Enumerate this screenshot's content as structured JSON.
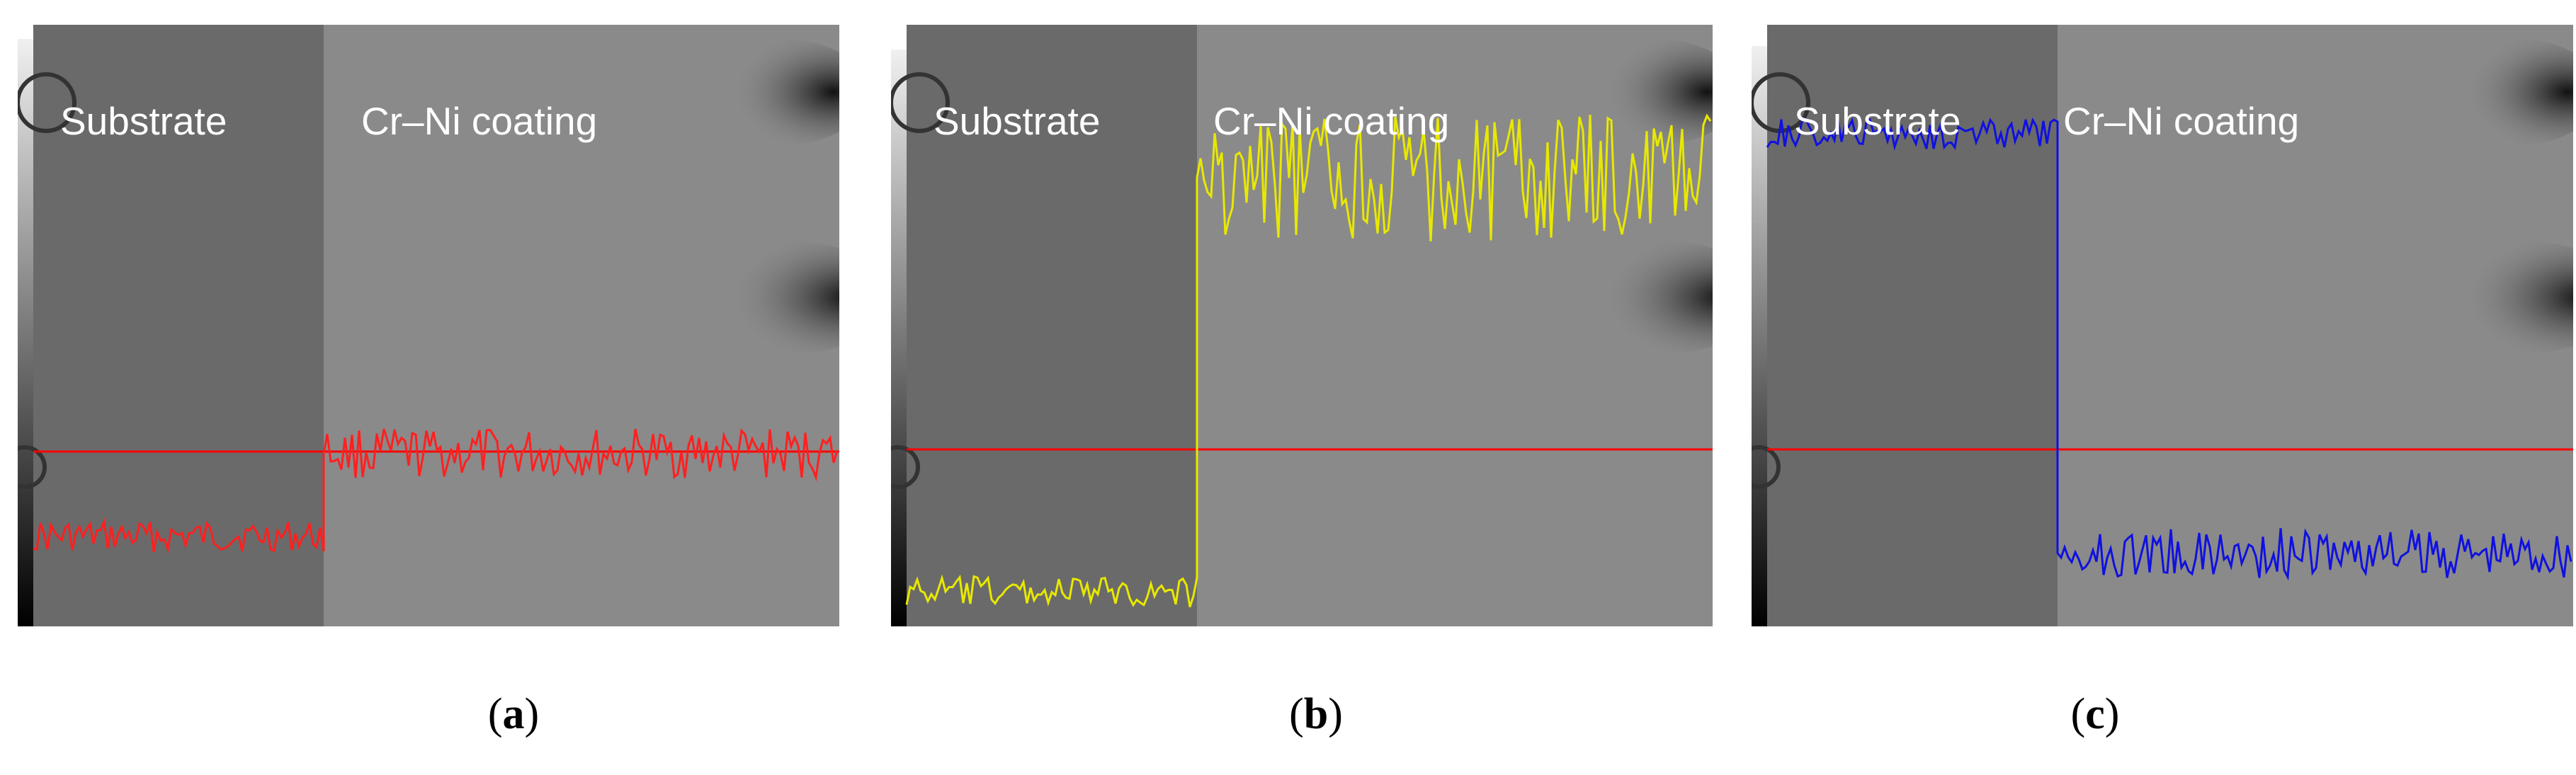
{
  "panels": [
    {
      "id": "a",
      "caption_open": "(",
      "caption_letter": "a",
      "caption_close": ")",
      "substrate_label": "Substrate",
      "coating_label": "Cr–Ni coating",
      "profile_color": "#ff2020",
      "reference_line_color": "#ff0000",
      "substrate_level": 0.15,
      "coating_level": 0.3
    },
    {
      "id": "b",
      "caption_open": "(",
      "caption_letter": "b",
      "caption_close": ")",
      "substrate_label": "Substrate",
      "coating_label": "Cr–Ni coating",
      "profile_color": "#e8e800",
      "reference_line_color": "#ff0000",
      "substrate_level": 0.05,
      "coating_level": 0.8
    },
    {
      "id": "c",
      "caption_open": "(",
      "caption_letter": "c",
      "caption_close": ")",
      "substrate_label": "Substrate",
      "coating_label": "Cr–Ni coating",
      "profile_color": "#1010e0",
      "reference_line_color": "#ff0000",
      "substrate_level": 0.88,
      "coating_level": 0.12
    }
  ]
}
